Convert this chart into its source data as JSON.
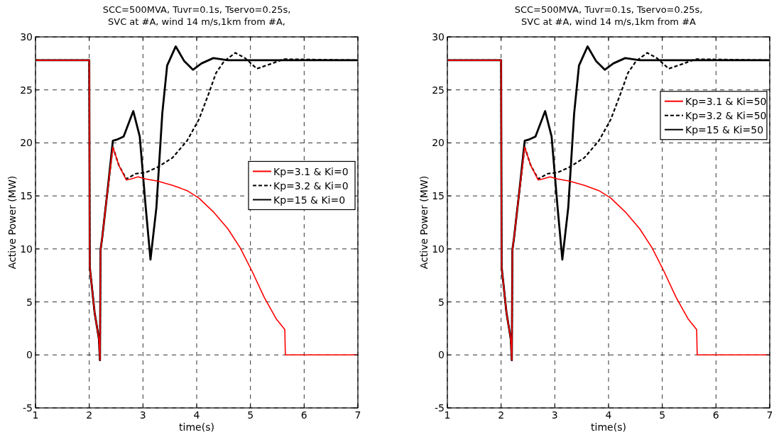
{
  "chart_data": [
    {
      "type": "line",
      "title": "SCC=500MVA, Tuvr=0.1s, Tservo=0.25s,\nSVC at #A, wind 14 m/s,1km from #A,",
      "xlabel": "time(s)",
      "ylabel": "Active Power (MW)",
      "xlim": [
        1,
        7
      ],
      "xticks": [
        1,
        2,
        3,
        4,
        5,
        6,
        7
      ],
      "ylim": [
        -5,
        30
      ],
      "yticks": [
        -5,
        0,
        5,
        10,
        15,
        20,
        25,
        30
      ],
      "grid": true,
      "legend": "right",
      "series": [
        {
          "name": "Kp=3.1 & Ki=0",
          "color": "#ff0000",
          "line_style": "solid",
          "x": [
            1,
            2,
            2.01,
            2.1,
            2.18,
            2.2,
            2.21,
            2.24,
            2.33,
            2.44,
            2.55,
            2.69,
            2.78,
            2.91,
            3.05,
            3.27,
            3.55,
            3.82,
            4.04,
            4.31,
            4.58,
            4.81,
            5.03,
            5.26,
            5.48,
            5.64,
            5.65,
            7
          ],
          "values": [
            27.8,
            27.8,
            8.3,
            4,
            1.5,
            -0.5,
            9.9,
            11,
            15,
            19.6,
            17.9,
            16.5,
            16.6,
            16.8,
            16.6,
            16.4,
            16,
            15.5,
            14.8,
            13.5,
            11.9,
            10.1,
            7.9,
            5.4,
            3.4,
            2.4,
            0,
            0
          ]
        },
        {
          "name": "Kp=3.2 & Ki=0",
          "color": "#000000",
          "line_style": "dashed",
          "x": [
            1,
            2,
            2.01,
            2.1,
            2.18,
            2.2,
            2.21,
            2.24,
            2.33,
            2.44,
            2.55,
            2.69,
            2.87,
            3.05,
            3.27,
            3.55,
            3.82,
            4.04,
            4.22,
            4.36,
            4.51,
            4.72,
            4.9,
            5.12,
            5.35,
            5.62,
            7
          ],
          "values": [
            27.8,
            27.8,
            8.3,
            4,
            1.5,
            -0.5,
            9.9,
            11,
            15,
            19.6,
            17.9,
            16.6,
            17.1,
            17.2,
            17.7,
            18.6,
            20.2,
            22.2,
            24.6,
            26.6,
            27.7,
            28.5,
            28,
            27,
            27.4,
            27.9,
            27.8
          ]
        },
        {
          "name": "Kp=15 & Ki=0",
          "color": "#000000",
          "line_style": "solid",
          "x": [
            1,
            2,
            2.01,
            2.1,
            2.18,
            2.2,
            2.21,
            2.24,
            2.33,
            2.44,
            2.51,
            2.64,
            2.82,
            2.94,
            3.05,
            3.14,
            3.25,
            3.36,
            3.45,
            3.61,
            3.77,
            3.93,
            4.09,
            4.31,
            4.58,
            7
          ],
          "values": [
            27.8,
            27.8,
            8.3,
            4,
            1.5,
            -0.5,
            9.9,
            11,
            15,
            20.2,
            20.3,
            20.6,
            23,
            20.6,
            14,
            9,
            13.9,
            22.8,
            27.3,
            29.1,
            27.7,
            26.9,
            27.5,
            28,
            27.8,
            27.8
          ]
        }
      ]
    },
    {
      "type": "line",
      "title": "SCC=500MVA, Tuvr=0.1s, Tservo=0.25s,\nSVC at #A, wind 14 m/s,1km from #A",
      "xlabel": "time(s)",
      "ylabel": "Active Power (MW)",
      "xlim": [
        1,
        7
      ],
      "xticks": [
        1,
        2,
        3,
        4,
        5,
        6,
        7
      ],
      "ylim": [
        -5,
        30
      ],
      "yticks": [
        -5,
        0,
        5,
        10,
        15,
        20,
        25,
        30
      ],
      "grid": true,
      "legend": "top right",
      "series": [
        {
          "name": "Kp=3.1 & Ki=50",
          "color": "#ff0000",
          "line_style": "solid",
          "x": [
            1,
            2,
            2.01,
            2.1,
            2.18,
            2.2,
            2.21,
            2.24,
            2.33,
            2.44,
            2.55,
            2.69,
            2.78,
            2.91,
            3.05,
            3.27,
            3.55,
            3.82,
            4.04,
            4.31,
            4.58,
            4.81,
            5.03,
            5.26,
            5.48,
            5.64,
            5.65,
            7
          ],
          "values": [
            27.8,
            27.8,
            8.3,
            4,
            1.5,
            -0.5,
            9.9,
            11,
            15,
            19.6,
            17.9,
            16.5,
            16.6,
            16.8,
            16.6,
            16.4,
            16,
            15.5,
            14.8,
            13.5,
            11.9,
            10.1,
            7.9,
            5.4,
            3.4,
            2.4,
            0,
            0
          ]
        },
        {
          "name": "Kp=3.2 & Ki=50",
          "color": "#000000",
          "line_style": "dashed",
          "x": [
            1,
            2,
            2.01,
            2.1,
            2.18,
            2.2,
            2.21,
            2.24,
            2.33,
            2.44,
            2.55,
            2.69,
            2.87,
            3.05,
            3.27,
            3.55,
            3.82,
            4.04,
            4.22,
            4.36,
            4.51,
            4.72,
            4.9,
            5.12,
            5.35,
            5.62,
            7
          ],
          "values": [
            27.8,
            27.8,
            8.3,
            4,
            1.5,
            -0.5,
            9.9,
            11,
            15,
            19.6,
            17.9,
            16.6,
            17.1,
            17.2,
            17.7,
            18.6,
            20.2,
            22.2,
            24.6,
            26.6,
            27.7,
            28.5,
            28,
            27,
            27.4,
            27.9,
            27.8
          ]
        },
        {
          "name": "Kp=15 & Ki=50",
          "color": "#000000",
          "line_style": "solid",
          "x": [
            1,
            2,
            2.01,
            2.1,
            2.18,
            2.2,
            2.21,
            2.24,
            2.33,
            2.44,
            2.51,
            2.64,
            2.82,
            2.94,
            3.05,
            3.14,
            3.25,
            3.36,
            3.45,
            3.61,
            3.77,
            3.93,
            4.09,
            4.31,
            4.58,
            7
          ],
          "values": [
            27.8,
            27.8,
            8.3,
            4,
            1.5,
            -0.5,
            9.9,
            11,
            15,
            20.2,
            20.3,
            20.6,
            23,
            20.6,
            14,
            9,
            13.9,
            22.8,
            27.3,
            29.1,
            27.7,
            26.9,
            27.5,
            28,
            27.8,
            27.8
          ]
        }
      ]
    }
  ]
}
